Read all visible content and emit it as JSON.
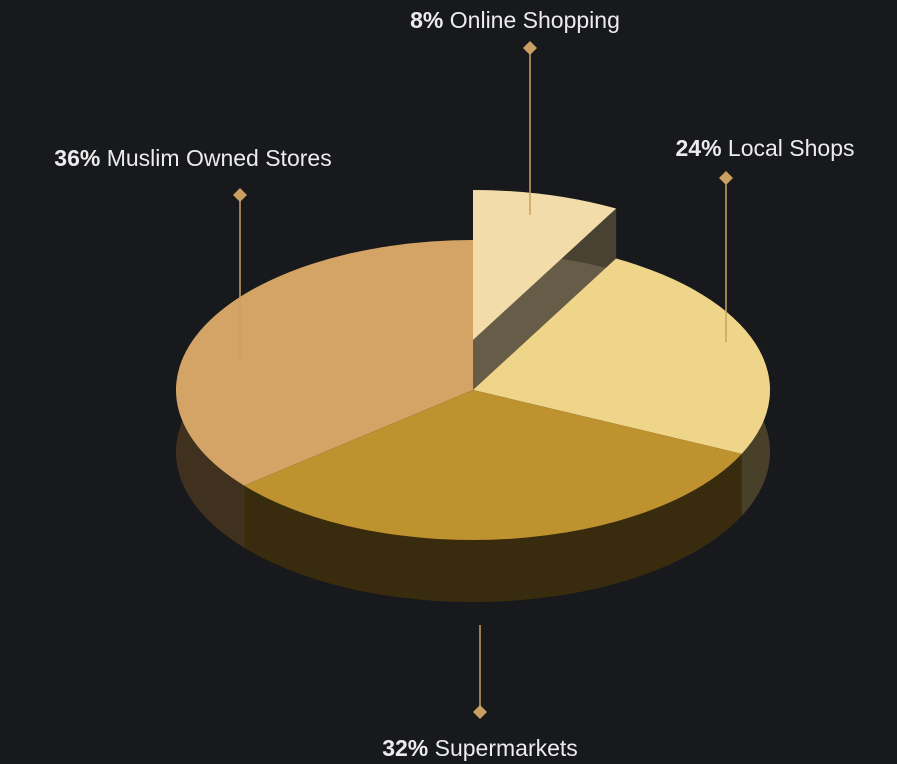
{
  "chart_data": {
    "type": "pie",
    "categories": [
      "Online Shopping",
      "Local Shops",
      "Supermarkets",
      "Muslim Owned Stores"
    ],
    "values": [
      8,
      24,
      32,
      36
    ],
    "value_labels": [
      "8%",
      "24%",
      "32%",
      "36%"
    ],
    "colors": [
      "#f2dca9",
      "#efd58a",
      "#bd922f",
      "#d4a466"
    ]
  }
}
